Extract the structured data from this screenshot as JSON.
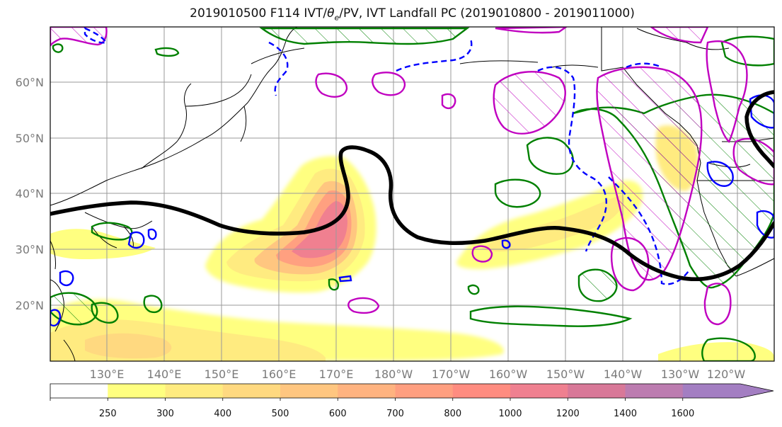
{
  "title": {
    "prefix": "2019010500 F114 IVT/",
    "theta": "θ",
    "theta_sub": "e",
    "suffix": "/PV, IVT Landfall PC (2019010800 - 2019011000)"
  },
  "lat_labels": [
    "60°N",
    "50°N",
    "40°N",
    "30°N",
    "20°N"
  ],
  "lon_labels": [
    "130°E",
    "140°E",
    "150°E",
    "160°E",
    "170°E",
    "180°W",
    "170°W",
    "160°W",
    "150°W",
    "140°W",
    "130°W",
    "120°W"
  ],
  "colorbar": {
    "ticks": [
      "250",
      "300",
      "400",
      "500",
      "600",
      "700",
      "800",
      "1000",
      "1200",
      "1400",
      "1600"
    ],
    "colors": [
      "#ffffff",
      "#ffff80",
      "#ffeb80",
      "#ffd980",
      "#ffc680",
      "#ffb380",
      "#ff9f80",
      "#ff8c80",
      "#ef8090",
      "#d87898",
      "#bc7cb0",
      "#a37ec2"
    ]
  },
  "colors": {
    "ivt_contour": "#000000",
    "theta_e": "#008000",
    "pv_magenta": "#c000c0",
    "pv_blue": "#0000ff",
    "grid": "#9a9a9a",
    "coast": "#000000"
  }
}
